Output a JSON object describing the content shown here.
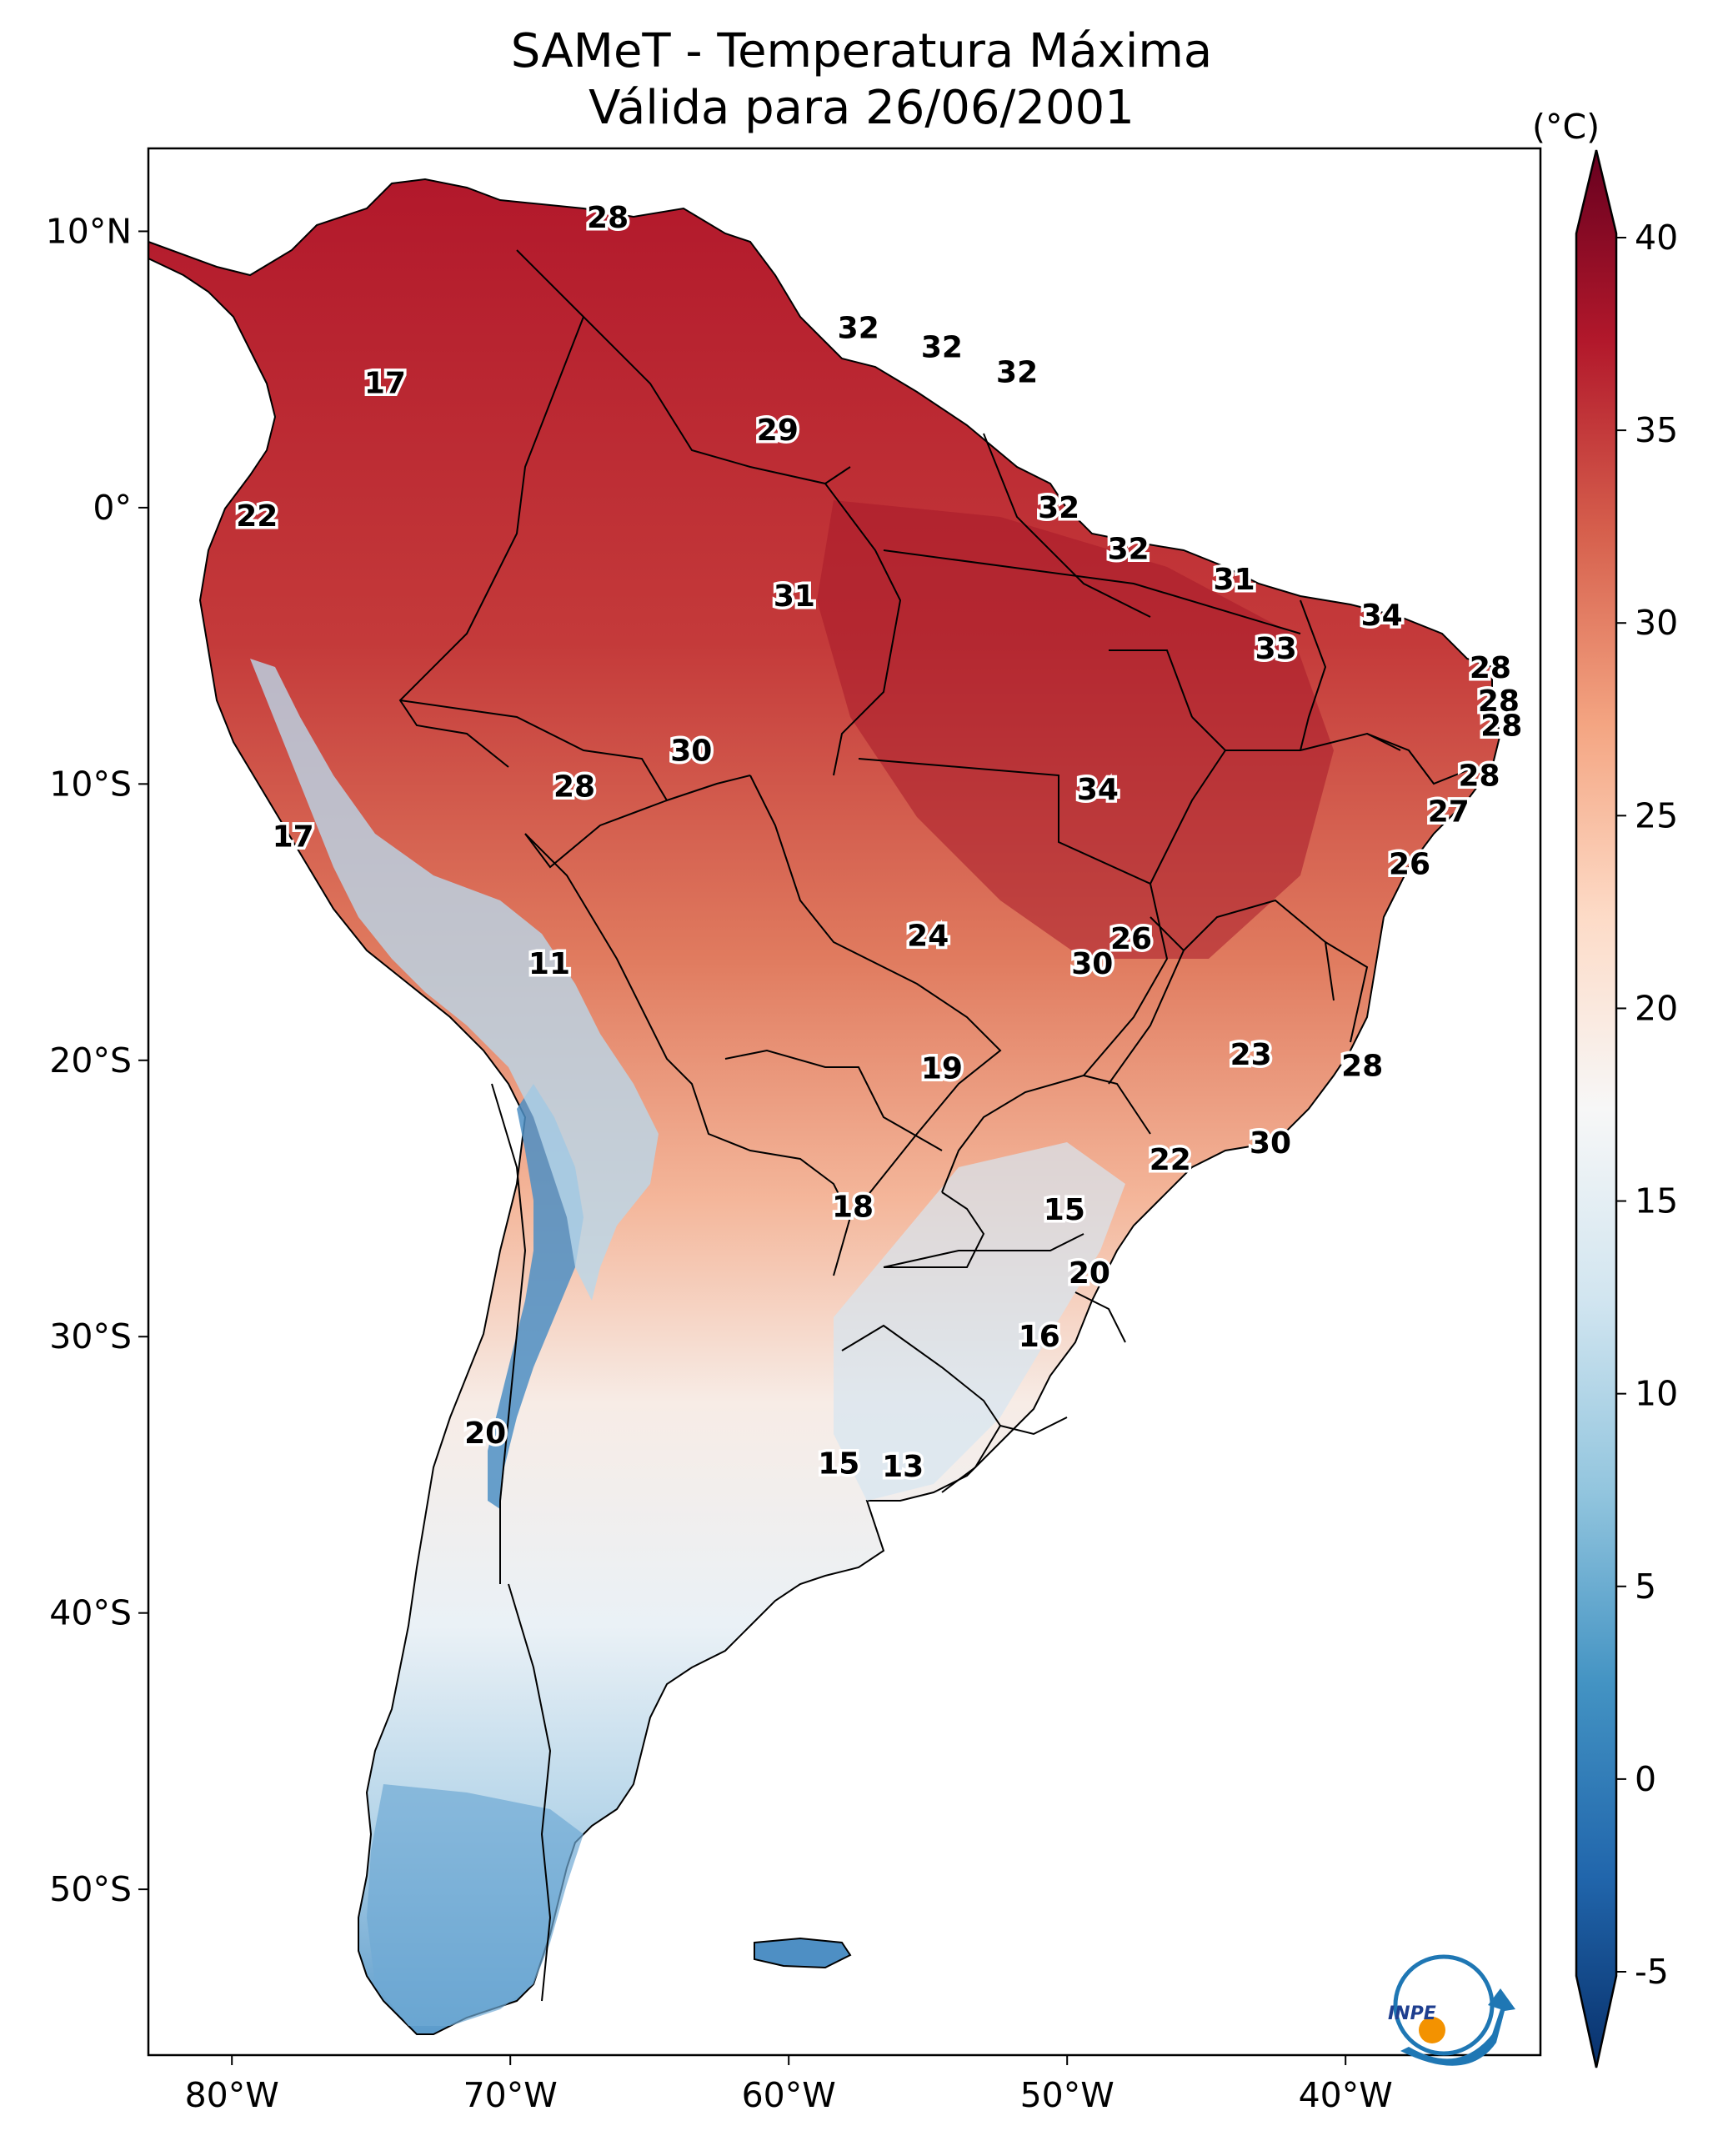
{
  "title": {
    "line1": "SAMeT - Temperatura Máxima",
    "line2": "Válida para 26/06/2001"
  },
  "map": {
    "lon_range": [
      -83,
      -33
    ],
    "lat_range": [
      -56,
      13
    ],
    "x_ticks": [
      {
        "lon": -80,
        "label": "80°W"
      },
      {
        "lon": -70,
        "label": "70°W"
      },
      {
        "lon": -60,
        "label": "60°W"
      },
      {
        "lon": -50,
        "label": "50°W"
      },
      {
        "lon": -40,
        "label": "40°W"
      }
    ],
    "y_ticks": [
      {
        "lat": 10,
        "label": "10°N"
      },
      {
        "lat": 0,
        "label": "0°"
      },
      {
        "lat": -10,
        "label": "10°S"
      },
      {
        "lat": -20,
        "label": "20°S"
      },
      {
        "lat": -30,
        "label": "30°S"
      },
      {
        "lat": -40,
        "label": "40°S"
      },
      {
        "lat": -50,
        "label": "50°S"
      }
    ],
    "point_labels": [
      {
        "lon": -66.5,
        "lat": 10.5,
        "value": "28"
      },
      {
        "lon": -74.5,
        "lat": 4.5,
        "value": "17"
      },
      {
        "lon": -57.5,
        "lat": 6.5,
        "value": "32"
      },
      {
        "lon": -54.5,
        "lat": 5.8,
        "value": "32"
      },
      {
        "lon": -51.8,
        "lat": 4.9,
        "value": "32"
      },
      {
        "lon": -60.4,
        "lat": 2.8,
        "value": "29"
      },
      {
        "lon": -79.1,
        "lat": -0.3,
        "value": "22"
      },
      {
        "lon": -50.3,
        "lat": 0.0,
        "value": "32"
      },
      {
        "lon": -47.8,
        "lat": -1.5,
        "value": "32"
      },
      {
        "lon": -59.8,
        "lat": -3.2,
        "value": "31"
      },
      {
        "lon": -44.0,
        "lat": -2.6,
        "value": "31"
      },
      {
        "lon": -38.7,
        "lat": -3.9,
        "value": "34"
      },
      {
        "lon": -42.5,
        "lat": -5.1,
        "value": "33"
      },
      {
        "lon": -34.8,
        "lat": -5.8,
        "value": "28"
      },
      {
        "lon": -34.5,
        "lat": -7.0,
        "value": "28"
      },
      {
        "lon": -34.4,
        "lat": -7.9,
        "value": "28"
      },
      {
        "lon": -63.5,
        "lat": -8.8,
        "value": "30"
      },
      {
        "lon": -67.7,
        "lat": -10.1,
        "value": "28"
      },
      {
        "lon": -35.2,
        "lat": -9.7,
        "value": "28"
      },
      {
        "lon": -48.9,
        "lat": -10.2,
        "value": "34"
      },
      {
        "lon": -36.3,
        "lat": -11.0,
        "value": "27"
      },
      {
        "lon": -77.8,
        "lat": -11.9,
        "value": "17"
      },
      {
        "lon": -37.7,
        "lat": -12.9,
        "value": "26"
      },
      {
        "lon": -55.0,
        "lat": -15.5,
        "value": "24"
      },
      {
        "lon": -47.7,
        "lat": -15.6,
        "value": "26"
      },
      {
        "lon": -49.1,
        "lat": -16.5,
        "value": "30"
      },
      {
        "lon": -68.6,
        "lat": -16.5,
        "value": "11"
      },
      {
        "lon": -43.4,
        "lat": -19.8,
        "value": "23"
      },
      {
        "lon": -39.4,
        "lat": -20.2,
        "value": "28"
      },
      {
        "lon": -54.5,
        "lat": -20.3,
        "value": "19"
      },
      {
        "lon": -42.7,
        "lat": -23.0,
        "value": "30"
      },
      {
        "lon": -46.3,
        "lat": -23.6,
        "value": "22"
      },
      {
        "lon": -57.7,
        "lat": -25.3,
        "value": "18"
      },
      {
        "lon": -50.1,
        "lat": -25.4,
        "value": "15"
      },
      {
        "lon": -49.2,
        "lat": -27.7,
        "value": "20"
      },
      {
        "lon": -51.0,
        "lat": -30.0,
        "value": "16"
      },
      {
        "lon": -70.9,
        "lat": -33.5,
        "value": "20"
      },
      {
        "lon": -58.2,
        "lat": -34.6,
        "value": "15"
      },
      {
        "lon": -55.9,
        "lat": -34.7,
        "value": "13"
      }
    ]
  },
  "colorbar": {
    "unit": "(°C)",
    "min": -5,
    "max": 40,
    "ticks": [
      "40",
      "35",
      "30",
      "25",
      "20",
      "15",
      "10",
      "5",
      "0",
      "-5"
    ],
    "colors": [
      "#08306b",
      "#2166ac",
      "#4393c3",
      "#92c5de",
      "#d1e5f0",
      "#f7f7f7",
      "#fddbc7",
      "#f4a582",
      "#d6604d",
      "#b2182b",
      "#67001f"
    ]
  },
  "logo": {
    "text": "INPE"
  }
}
